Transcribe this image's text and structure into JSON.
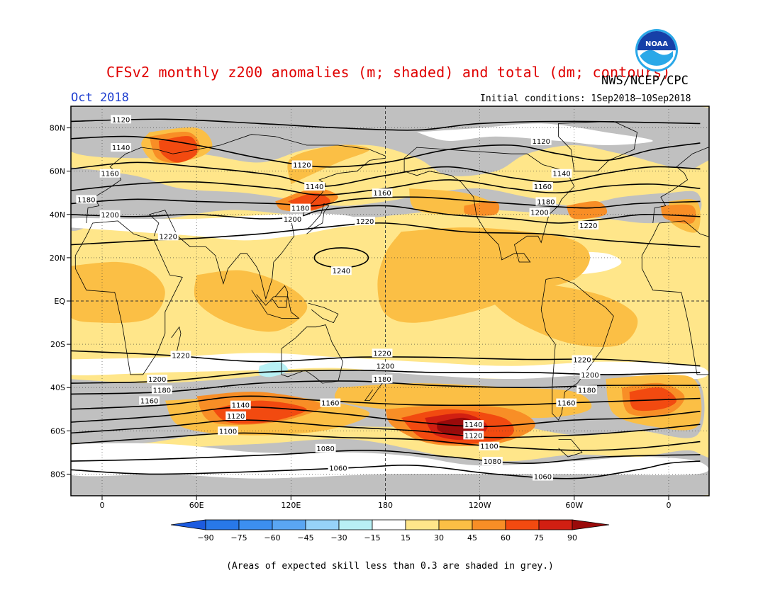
{
  "title": "CFSv2 monthly z200 anomalies (m; shaded) and total (dm; contours)",
  "agency": "NWS/NCEP/CPC",
  "month": "Oct 2018",
  "initial_conditions": "Initial conditions: 1Sep2018–10Sep2018",
  "note": "(Areas of expected skill less than 0.3 are shaded in grey.)",
  "logo_text": "NOAA",
  "lat_labels": [
    "80N",
    "60N",
    "40N",
    "20N",
    "EQ",
    "20S",
    "40S",
    "60S",
    "80S"
  ],
  "lon_labels": [
    "0",
    "60E",
    "120E",
    "180",
    "120W",
    "60W",
    "0"
  ],
  "colorbar": {
    "labels": [
      "−90",
      "−75",
      "−60",
      "−45",
      "−30",
      "−15",
      "15",
      "30",
      "45",
      "60",
      "75",
      "90"
    ],
    "colors": {
      "lt90": "#1c5be0",
      "m90": "#2878e8",
      "m75": "#3c8ff0",
      "m60": "#5aa6f2",
      "m45": "#96d2f8",
      "m30": "#b8f0f4",
      "neutral": "#ffffff",
      "p15": "#ffe68a",
      "p30": "#fbbf45",
      "p45": "#f88e26",
      "p60": "#f24a10",
      "p75": "#d11f12",
      "gt90": "#9a0a0a"
    }
  },
  "colors": {
    "grey": "#c0c0c0",
    "title": "#e00000",
    "month": "#2040d0"
  },
  "contours": [
    {
      "label": "1060",
      "points": [
        [
          -20,
          -78
        ],
        [
          30,
          -80
        ],
        [
          90,
          -79
        ],
        [
          160,
          -77
        ],
        [
          200,
          -76
        ],
        [
          250,
          -80
        ],
        [
          300,
          -82
        ],
        [
          340,
          -78
        ],
        [
          360,
          -75
        ],
        [
          380,
          -74
        ]
      ]
    },
    {
      "label": "1080",
      "points": [
        [
          -20,
          -74
        ],
        [
          40,
          -73
        ],
        [
          110,
          -71
        ],
        [
          170,
          -69
        ],
        [
          220,
          -72
        ],
        [
          270,
          -75
        ],
        [
          320,
          -72
        ],
        [
          380,
          -71
        ]
      ]
    },
    {
      "label": "1100",
      "points": [
        [
          -20,
          -66
        ],
        [
          40,
          -63
        ],
        [
          90,
          -61
        ],
        [
          150,
          -63
        ],
        [
          200,
          -64
        ],
        [
          245,
          -67
        ],
        [
          300,
          -69
        ],
        [
          340,
          -68
        ],
        [
          380,
          -65
        ]
      ]
    },
    {
      "label": "1120",
      "points": [
        [
          -20,
          -61
        ],
        [
          40,
          -58
        ],
        [
          90,
          -55
        ],
        [
          150,
          -58
        ],
        [
          200,
          -60
        ],
        [
          245,
          -63
        ],
        [
          300,
          -62
        ],
        [
          340,
          -60
        ],
        [
          380,
          -57
        ]
      ]
    },
    {
      "label": "1140",
      "points": [
        [
          -20,
          -56
        ],
        [
          40,
          -53
        ],
        [
          90,
          -49
        ],
        [
          150,
          -52
        ],
        [
          200,
          -56
        ],
        [
          245,
          -58
        ],
        [
          300,
          -55
        ],
        [
          340,
          -54
        ],
        [
          380,
          -51
        ]
      ]
    },
    {
      "label": "1160",
      "points": [
        [
          -20,
          -50
        ],
        [
          40,
          -48
        ],
        [
          90,
          -44
        ],
        [
          140,
          -46
        ],
        [
          200,
          -48
        ],
        [
          260,
          -48
        ],
        [
          300,
          -47
        ],
        [
          340,
          -46
        ],
        [
          380,
          -45
        ]
      ]
    },
    {
      "label": "1180",
      "points": [
        [
          -20,
          -43
        ],
        [
          40,
          -42
        ],
        [
          100,
          -38
        ],
        [
          160,
          -37
        ],
        [
          210,
          -39
        ],
        [
          270,
          -40
        ],
        [
          320,
          -39
        ],
        [
          380,
          -39
        ]
      ]
    },
    {
      "label": "1200",
      "points": [
        [
          -20,
          -38
        ],
        [
          40,
          -37
        ],
        [
          100,
          -33
        ],
        [
          160,
          -32
        ],
        [
          210,
          -33
        ],
        [
          270,
          -33
        ],
        [
          320,
          -34
        ],
        [
          380,
          -33
        ]
      ]
    },
    {
      "label": "1220",
      "points": [
        [
          -20,
          -23
        ],
        [
          40,
          -25
        ],
        [
          100,
          -28
        ],
        [
          160,
          -26
        ],
        [
          210,
          -26
        ],
        [
          270,
          -27
        ],
        [
          320,
          -27
        ],
        [
          380,
          -30
        ]
      ]
    },
    {
      "label": "1220",
      "points": [
        [
          -20,
          26
        ],
        [
          30,
          28
        ],
        [
          60,
          29
        ],
        [
          100,
          31
        ],
        [
          140,
          34
        ],
        [
          180,
          36
        ],
        [
          230,
          32
        ],
        [
          280,
          31
        ],
        [
          320,
          28
        ],
        [
          380,
          25
        ]
      ]
    },
    {
      "label": "1200",
      "points": [
        [
          -20,
          40
        ],
        [
          20,
          39
        ],
        [
          60,
          40
        ],
        [
          100,
          38
        ],
        [
          125,
          39
        ],
        [
          140,
          42
        ],
        [
          180,
          44
        ],
        [
          220,
          40
        ],
        [
          260,
          38
        ],
        [
          290,
          36
        ],
        [
          320,
          38
        ],
        [
          345,
          40
        ],
        [
          380,
          39
        ]
      ]
    },
    {
      "label": "1180",
      "points": [
        [
          -20,
          45
        ],
        [
          20,
          47
        ],
        [
          60,
          46
        ],
        [
          110,
          45
        ],
        [
          135,
          44
        ],
        [
          160,
          47
        ],
        [
          200,
          48
        ],
        [
          240,
          46
        ],
        [
          280,
          44
        ],
        [
          310,
          43
        ],
        [
          340,
          45
        ],
        [
          380,
          46
        ]
      ]
    },
    {
      "label": "1160",
      "points": [
        [
          -20,
          51
        ],
        [
          20,
          54
        ],
        [
          60,
          55
        ],
        [
          110,
          52
        ],
        [
          140,
          49
        ],
        [
          180,
          52
        ],
        [
          220,
          56
        ],
        [
          260,
          52
        ],
        [
          290,
          50
        ],
        [
          320,
          53
        ],
        [
          350,
          54
        ],
        [
          380,
          52
        ]
      ]
    },
    {
      "label": "1140",
      "points": [
        [
          -20,
          61
        ],
        [
          20,
          64
        ],
        [
          60,
          62
        ],
        [
          110,
          58
        ],
        [
          140,
          53
        ],
        [
          180,
          58
        ],
        [
          220,
          62
        ],
        [
          260,
          57
        ],
        [
          290,
          55
        ],
        [
          320,
          59
        ],
        [
          350,
          62
        ],
        [
          380,
          61
        ]
      ]
    },
    {
      "label": "1120",
      "points": [
        [
          -20,
          75
        ],
        [
          20,
          76
        ],
        [
          60,
          72
        ],
        [
          100,
          66
        ],
        [
          140,
          62
        ],
        [
          180,
          64
        ],
        [
          220,
          70
        ],
        [
          260,
          72
        ],
        [
          290,
          68
        ],
        [
          320,
          65
        ],
        [
          350,
          70
        ],
        [
          380,
          73
        ]
      ]
    },
    {
      "label": "1120",
      "points": [
        [
          -20,
          83
        ],
        [
          40,
          84
        ],
        [
          100,
          82
        ],
        [
          150,
          80
        ],
        [
          200,
          79
        ],
        [
          240,
          82
        ],
        [
          300,
          83
        ],
        [
          380,
          82
        ]
      ]
    }
  ]
}
